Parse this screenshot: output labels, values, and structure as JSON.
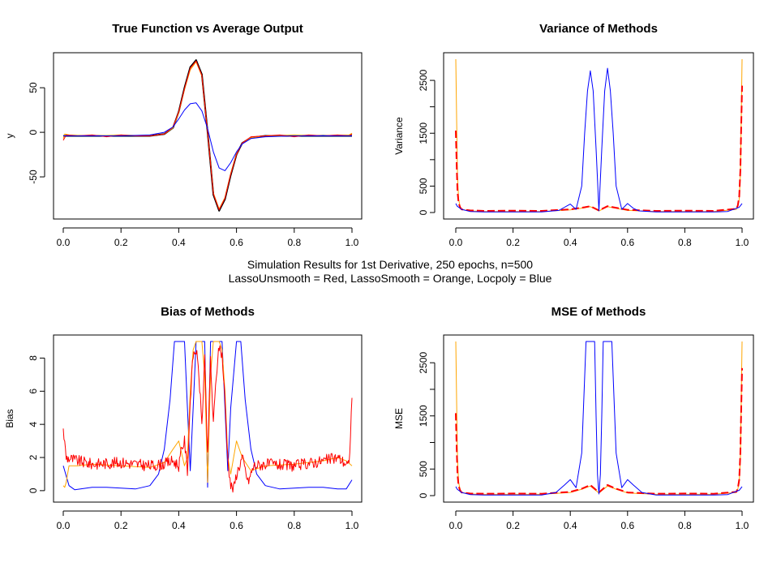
{
  "supertitle": {
    "line1": "Simulation Results for 1st Derivative, 250 epochs, n=500",
    "line2": "LassoUnsmooth = Red, LassoSmooth = Orange, Locpoly = Blue"
  },
  "colors": {
    "red": "#ff0000",
    "orange": "#ffa500",
    "blue": "#0000ff",
    "black": "#000000"
  },
  "chart_data": [
    {
      "id": "p1",
      "type": "line",
      "title": "True Function vs Average Output",
      "xlabel": "",
      "ylabel": "y",
      "xlim": [
        0,
        1
      ],
      "ylim": [
        -90,
        82
      ],
      "xticks": [
        0.0,
        0.2,
        0.4,
        0.6,
        0.8,
        1.0
      ],
      "yticks": [
        -50,
        0,
        50
      ],
      "xtick_labels": [
        "0.0",
        "0.2",
        "0.4",
        "0.6",
        "0.8",
        "1.0"
      ],
      "ytick_labels": [
        "-50",
        "0",
        "50"
      ],
      "series": [
        {
          "color": "black",
          "width": 2,
          "x": [
            0,
            0.1,
            0.2,
            0.3,
            0.35,
            0.38,
            0.4,
            0.42,
            0.44,
            0.46,
            0.48,
            0.5,
            0.52,
            0.54,
            0.56,
            0.58,
            0.6,
            0.62,
            0.65,
            0.7,
            0.8,
            0.9,
            1.0
          ],
          "y": [
            -4,
            -4,
            -4,
            -4,
            -2,
            5,
            23,
            50,
            73,
            81,
            65,
            0,
            -70,
            -88,
            -75,
            -48,
            -25,
            -12,
            -6,
            -4,
            -4,
            -4,
            -4
          ]
        },
        {
          "color": "orange",
          "width": 1,
          "x": [
            0,
            0.005,
            0.02,
            0.1,
            0.2,
            0.3,
            0.35,
            0.38,
            0.4,
            0.42,
            0.44,
            0.46,
            0.48,
            0.5,
            0.52,
            0.54,
            0.56,
            0.58,
            0.6,
            0.62,
            0.65,
            0.7,
            0.8,
            0.9,
            0.99,
            1.0
          ],
          "y": [
            -7,
            -2,
            -3,
            -4,
            -3,
            -4,
            -2,
            5,
            22,
            48,
            70,
            79,
            63,
            0,
            -68,
            -86,
            -73,
            -46,
            -24,
            -12,
            -6,
            -4,
            -3,
            -4,
            -3,
            -1
          ]
        },
        {
          "color": "red",
          "width": 1,
          "x": [
            0,
            0.01,
            0.05,
            0.1,
            0.15,
            0.2,
            0.25,
            0.3,
            0.35,
            0.38,
            0.4,
            0.42,
            0.44,
            0.46,
            0.48,
            0.5,
            0.52,
            0.54,
            0.56,
            0.58,
            0.6,
            0.62,
            0.65,
            0.7,
            0.75,
            0.8,
            0.85,
            0.9,
            0.95,
            0.99,
            1.0
          ],
          "y": [
            -9,
            -3,
            -4,
            -3,
            -5,
            -3,
            -4,
            -4,
            -2,
            6,
            23,
            49,
            72,
            80,
            64,
            0,
            -69,
            -87,
            -74,
            -47,
            -25,
            -12,
            -5,
            -4,
            -3,
            -5,
            -3,
            -4,
            -3,
            -4,
            -2
          ]
        },
        {
          "color": "blue",
          "width": 1,
          "x": [
            0,
            0.1,
            0.2,
            0.3,
            0.35,
            0.38,
            0.4,
            0.42,
            0.44,
            0.46,
            0.48,
            0.5,
            0.52,
            0.54,
            0.56,
            0.58,
            0.6,
            0.62,
            0.65,
            0.7,
            0.8,
            0.9,
            1.0
          ],
          "y": [
            -4,
            -4,
            -4,
            -3,
            0,
            6,
            15,
            25,
            32,
            33,
            24,
            4,
            -22,
            -40,
            -43,
            -34,
            -22,
            -13,
            -7,
            -5,
            -4,
            -4,
            -4
          ]
        }
      ]
    },
    {
      "id": "p2",
      "type": "line",
      "title": "Variance of Methods",
      "xlabel": "",
      "ylabel": "Variance",
      "xlim": [
        0,
        1
      ],
      "ylim": [
        0,
        2900
      ],
      "xticks": [
        0.0,
        0.2,
        0.4,
        0.6,
        0.8,
        1.0
      ],
      "yticks": [
        0,
        500,
        1000,
        1500,
        2000,
        2500
      ],
      "xtick_labels": [
        "0.0",
        "0.2",
        "0.4",
        "0.6",
        "0.8",
        "1.0"
      ],
      "ytick_labels": [
        "0",
        "500",
        "",
        "1500",
        "",
        "2500"
      ],
      "series": [
        {
          "color": "orange",
          "width": 1,
          "x": [
            0,
            0.003,
            0.006,
            0.01,
            0.015,
            0.02,
            0.05,
            0.1,
            0.2,
            0.3,
            0.4,
            0.45,
            0.47,
            0.5,
            0.53,
            0.55,
            0.6,
            0.7,
            0.8,
            0.9,
            0.98,
            0.985,
            0.99,
            0.994,
            0.997,
            1.0
          ],
          "y": [
            2900,
            1700,
            700,
            250,
            120,
            60,
            30,
            20,
            20,
            20,
            50,
            90,
            110,
            30,
            110,
            90,
            40,
            20,
            20,
            20,
            60,
            120,
            250,
            700,
            1700,
            2900
          ]
        },
        {
          "color": "red",
          "width": 2,
          "dashed": true,
          "x": [
            0,
            0.003,
            0.006,
            0.01,
            0.015,
            0.02,
            0.05,
            0.1,
            0.2,
            0.3,
            0.4,
            0.45,
            0.47,
            0.5,
            0.53,
            0.55,
            0.6,
            0.7,
            0.8,
            0.9,
            0.98,
            0.985,
            0.99,
            0.994,
            0.997,
            1.0
          ],
          "y": [
            1550,
            900,
            400,
            180,
            100,
            60,
            40,
            30,
            35,
            30,
            60,
            100,
            120,
            40,
            120,
            100,
            50,
            30,
            35,
            30,
            70,
            130,
            300,
            800,
            1600,
            2400
          ]
        },
        {
          "color": "blue",
          "width": 1,
          "x": [
            0,
            0.005,
            0.02,
            0.05,
            0.1,
            0.2,
            0.3,
            0.36,
            0.38,
            0.4,
            0.42,
            0.44,
            0.45,
            0.46,
            0.47,
            0.48,
            0.49,
            0.5,
            0.51,
            0.52,
            0.53,
            0.54,
            0.55,
            0.56,
            0.58,
            0.6,
            0.62,
            0.64,
            0.7,
            0.8,
            0.9,
            0.95,
            0.99,
            1.0
          ],
          "y": [
            170,
            120,
            60,
            20,
            10,
            10,
            10,
            40,
            100,
            160,
            60,
            500,
            1500,
            2300,
            2680,
            2300,
            1200,
            30,
            1200,
            2300,
            2730,
            2300,
            1500,
            500,
            60,
            170,
            80,
            30,
            10,
            10,
            10,
            20,
            100,
            170
          ]
        }
      ]
    },
    {
      "id": "p3",
      "type": "line",
      "title": "Bias of Methods",
      "xlabel": "",
      "ylabel": "Bias",
      "xlim": [
        0,
        1
      ],
      "ylim": [
        -0.3,
        9
      ],
      "xticks": [
        0.0,
        0.2,
        0.4,
        0.6,
        0.8,
        1.0
      ],
      "yticks": [
        0,
        2,
        4,
        6,
        8
      ],
      "xtick_labels": [
        "0.0",
        "0.2",
        "0.4",
        "0.6",
        "0.8",
        "1.0"
      ],
      "ytick_labels": [
        "0",
        "2",
        "4",
        "6",
        "8"
      ],
      "series": [
        {
          "color": "blue",
          "width": 1,
          "x": [
            0,
            0.005,
            0.02,
            0.04,
            0.06,
            0.1,
            0.15,
            0.2,
            0.25,
            0.3,
            0.33,
            0.35,
            0.37,
            0.385,
            0.4,
            0.42,
            0.43,
            0.44,
            0.45,
            0.46,
            0.47,
            0.48,
            0.49,
            0.5,
            0.51,
            0.52,
            0.53,
            0.54,
            0.55,
            0.56,
            0.57,
            0.58,
            0.6,
            0.615,
            0.63,
            0.65,
            0.67,
            0.7,
            0.75,
            0.8,
            0.85,
            0.9,
            0.95,
            0.98,
            1.0
          ],
          "y": [
            1.5,
            1.2,
            0.3,
            0.05,
            0.1,
            0.2,
            0.2,
            0.15,
            0.1,
            0.3,
            1.0,
            2.5,
            5.5,
            9,
            9,
            9,
            5,
            1.2,
            5,
            9,
            9,
            9,
            9,
            0.2,
            9,
            9,
            9,
            9,
            9,
            5,
            1.2,
            5,
            9,
            9,
            5.5,
            2.5,
            1.0,
            0.3,
            0.1,
            0.15,
            0.2,
            0.2,
            0.1,
            0.1,
            0.65
          ]
        },
        {
          "color": "orange",
          "width": 1,
          "x": [
            0,
            0.005,
            0.01,
            0.02,
            0.05,
            0.1,
            0.2,
            0.3,
            0.35,
            0.38,
            0.4,
            0.42,
            0.43,
            0.44,
            0.45,
            0.46,
            0.47,
            0.48,
            0.49,
            0.5,
            0.51,
            0.52,
            0.53,
            0.54,
            0.55,
            0.56,
            0.57,
            0.58,
            0.6,
            0.62,
            0.65,
            0.7,
            0.8,
            0.9,
            0.95,
            0.98,
            1.0
          ],
          "y": [
            0.3,
            0.2,
            0.5,
            1.5,
            1.5,
            1.6,
            1.5,
            1.4,
            1.7,
            2.5,
            3.0,
            1.5,
            2.0,
            6.0,
            8.5,
            9,
            9,
            9,
            7.0,
            0.5,
            7.0,
            9,
            9,
            9,
            8.5,
            6.0,
            2.0,
            1.0,
            3.0,
            2.0,
            1.2,
            1.5,
            1.6,
            1.8,
            2.0,
            1.8,
            1.5
          ]
        },
        {
          "color": "red",
          "width": 1,
          "noisy": true,
          "x": [
            0,
            0.01,
            0.05,
            0.1,
            0.2,
            0.3,
            0.35,
            0.38,
            0.4,
            0.41,
            0.42,
            0.43,
            0.44,
            0.45,
            0.46,
            0.47,
            0.48,
            0.49,
            0.495,
            0.5,
            0.505,
            0.51,
            0.52,
            0.53,
            0.54,
            0.55,
            0.56,
            0.57,
            0.58,
            0.59,
            0.6,
            0.62,
            0.64,
            0.66,
            0.7,
            0.8,
            0.9,
            0.95,
            0.99,
            1.0
          ],
          "y": [
            3.7,
            2.0,
            1.8,
            1.6,
            1.7,
            1.5,
            1.6,
            1.8,
            1.5,
            2.5,
            3.0,
            1.2,
            5.5,
            8.2,
            8.5,
            7.0,
            4.0,
            8.0,
            5.0,
            2.0,
            5.0,
            8.0,
            4.0,
            7.0,
            8.7,
            8.2,
            5.5,
            2.0,
            0.3,
            0.1,
            1.0,
            2.0,
            0.5,
            1.5,
            1.6,
            1.5,
            1.8,
            2.0,
            1.5,
            5.6
          ]
        }
      ]
    },
    {
      "id": "p4",
      "type": "line",
      "title": "MSE of Methods",
      "xlabel": "",
      "ylabel": "MSE",
      "xlim": [
        0,
        1
      ],
      "ylim": [
        0,
        2900
      ],
      "xticks": [
        0.0,
        0.2,
        0.4,
        0.6,
        0.8,
        1.0
      ],
      "yticks": [
        0,
        500,
        1000,
        1500,
        2000,
        2500
      ],
      "xtick_labels": [
        "0.0",
        "0.2",
        "0.4",
        "0.6",
        "0.8",
        "1.0"
      ],
      "ytick_labels": [
        "0",
        "500",
        "",
        "1500",
        "",
        "2500"
      ],
      "series": [
        {
          "color": "orange",
          "width": 1,
          "x": [
            0,
            0.003,
            0.006,
            0.01,
            0.015,
            0.02,
            0.05,
            0.1,
            0.2,
            0.3,
            0.4,
            0.44,
            0.47,
            0.5,
            0.53,
            0.56,
            0.6,
            0.7,
            0.8,
            0.9,
            0.98,
            0.985,
            0.99,
            0.994,
            0.997,
            1.0
          ],
          "y": [
            2900,
            1700,
            700,
            250,
            120,
            60,
            30,
            25,
            25,
            25,
            60,
            120,
            180,
            50,
            180,
            120,
            50,
            25,
            25,
            25,
            60,
            120,
            250,
            700,
            1700,
            2900
          ]
        },
        {
          "color": "red",
          "width": 2,
          "dashed": true,
          "x": [
            0,
            0.003,
            0.006,
            0.01,
            0.015,
            0.02,
            0.05,
            0.1,
            0.2,
            0.3,
            0.4,
            0.44,
            0.47,
            0.5,
            0.53,
            0.56,
            0.6,
            0.7,
            0.8,
            0.9,
            0.98,
            0.985,
            0.99,
            0.994,
            0.997,
            1.0
          ],
          "y": [
            1550,
            900,
            400,
            180,
            100,
            60,
            40,
            35,
            40,
            35,
            70,
            130,
            200,
            60,
            200,
            130,
            60,
            35,
            40,
            35,
            70,
            130,
            300,
            800,
            1600,
            2400
          ]
        },
        {
          "color": "blue",
          "width": 1,
          "x": [
            0,
            0.005,
            0.02,
            0.05,
            0.1,
            0.2,
            0.3,
            0.35,
            0.38,
            0.4,
            0.42,
            0.44,
            0.455,
            0.465,
            0.475,
            0.485,
            0.49,
            0.495,
            0.5,
            0.505,
            0.51,
            0.515,
            0.525,
            0.535,
            0.545,
            0.56,
            0.58,
            0.6,
            0.62,
            0.65,
            0.7,
            0.8,
            0.9,
            0.95,
            0.99,
            1.0
          ],
          "y": [
            170,
            120,
            60,
            20,
            10,
            10,
            10,
            60,
            200,
            300,
            150,
            800,
            2900,
            2900,
            2900,
            2900,
            1500,
            400,
            30,
            400,
            1500,
            2900,
            2900,
            2900,
            2900,
            800,
            150,
            300,
            200,
            60,
            10,
            10,
            10,
            20,
            100,
            170
          ]
        }
      ]
    }
  ]
}
